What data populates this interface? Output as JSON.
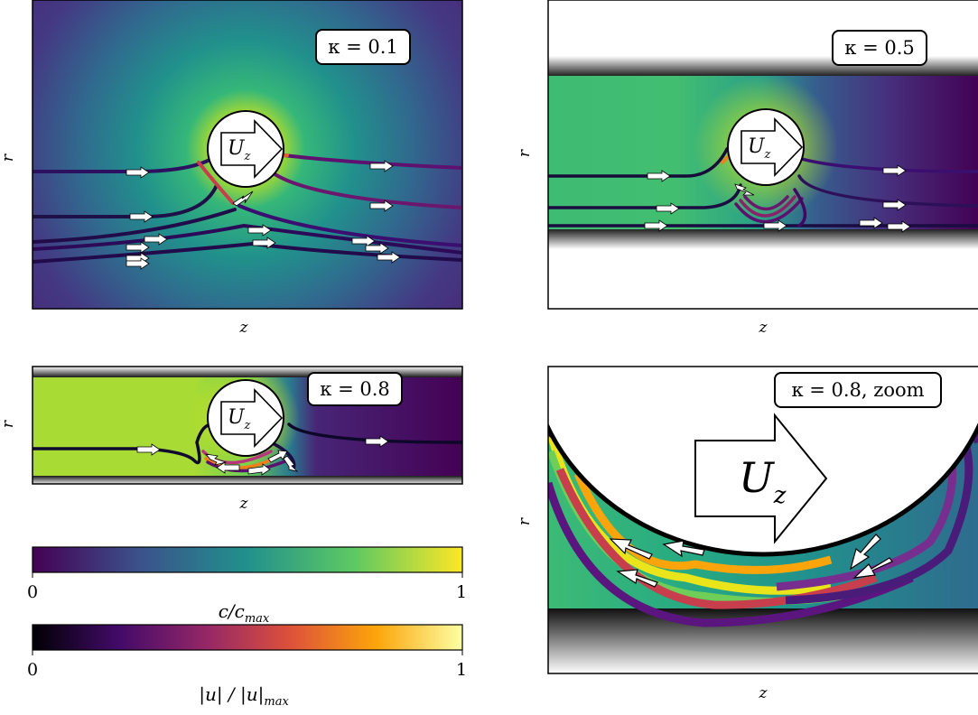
{
  "panels": [
    {
      "id": "a",
      "kappa_label": "κ = 0.1",
      "xlabel": "z",
      "ylabel": "r",
      "obstacle_label": "U",
      "obstacle_sub": "z"
    },
    {
      "id": "b",
      "kappa_label": "κ = 0.5",
      "xlabel": "z",
      "ylabel": "r",
      "obstacle_label": "U",
      "obstacle_sub": "z"
    },
    {
      "id": "c",
      "kappa_label": "κ = 0.8",
      "xlabel": "z",
      "ylabel": "r",
      "obstacle_label": "U",
      "obstacle_sub": "z"
    },
    {
      "id": "d",
      "kappa_label": "κ = 0.8, zoom",
      "xlabel": "z",
      "ylabel": "r",
      "obstacle_label": "U",
      "obstacle_sub": "z"
    }
  ],
  "colorbars": [
    {
      "id": "concentration",
      "label": "c/c",
      "label_sub": "max",
      "min_label": "0",
      "max_label": "1",
      "colormap": "viridis",
      "stops": [
        "#440154",
        "#3b528b",
        "#21918c",
        "#5ec962",
        "#fde725"
      ]
    },
    {
      "id": "velocity",
      "label": "|u| / |u|",
      "label_sub": "max",
      "min_label": "0",
      "max_label": "1",
      "colormap": "inferno",
      "stops": [
        "#000004",
        "#420a68",
        "#932667",
        "#dd513a",
        "#fca50a",
        "#fcffa4"
      ]
    }
  ]
}
